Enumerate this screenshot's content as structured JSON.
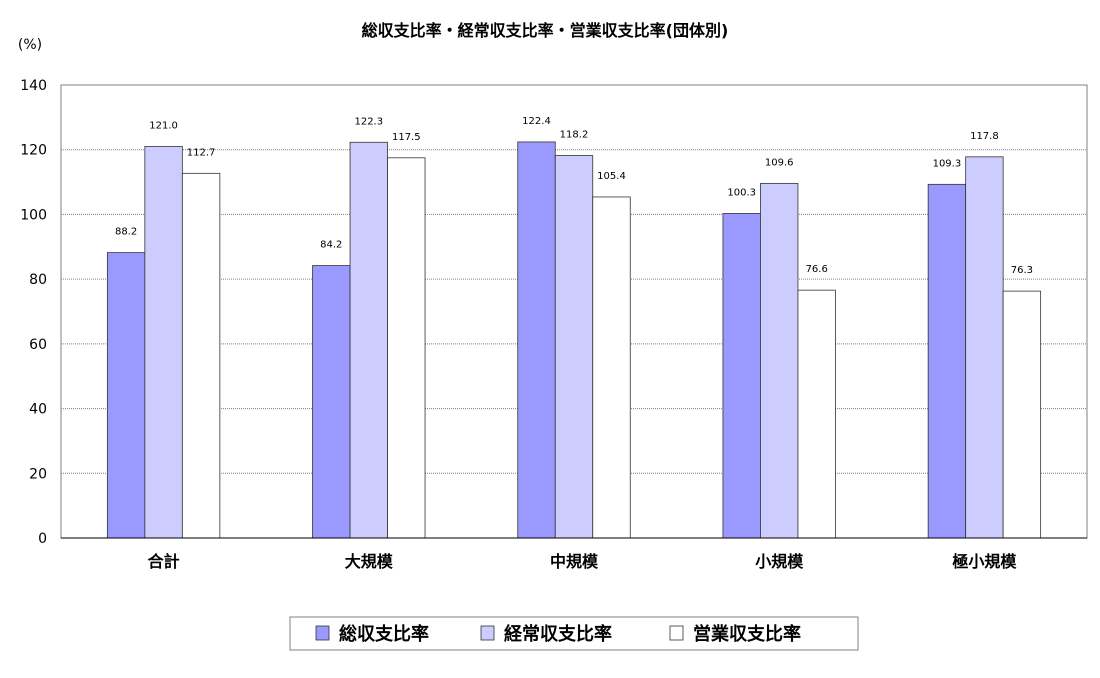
{
  "chart_data": {
    "type": "bar",
    "title": "総収支比率・経常収支比率・営業収支比率(団体別)",
    "unit_label": "(%)",
    "categories": [
      "合計",
      "大規模",
      "中規模",
      "小規模",
      "極小規模"
    ],
    "series": [
      {
        "name": "総収支比率",
        "values": [
          88.2,
          84.2,
          122.4,
          100.3,
          109.3
        ],
        "labels": [
          "88.2",
          "84.2",
          "122.4",
          "100.3",
          "109.3"
        ],
        "color": "#9999ff"
      },
      {
        "name": "経常収支比率",
        "values": [
          121.0,
          122.3,
          118.2,
          109.6,
          117.8
        ],
        "labels": [
          "121.0",
          "122.3",
          "118.2",
          "109.6",
          "117.8"
        ],
        "color": "#ccccff"
      },
      {
        "name": "営業収支比率",
        "values": [
          112.7,
          117.5,
          105.4,
          76.6,
          76.3
        ],
        "labels": [
          "112.7",
          "117.5",
          "105.4",
          "76.6",
          "76.3"
        ],
        "color": "#ffffff"
      }
    ],
    "y_ticks": [
      "0",
      "20",
      "40",
      "60",
      "80",
      "100",
      "120",
      "140"
    ],
    "ylim": [
      0,
      140
    ],
    "grid": true,
    "legend_position": "bottom"
  }
}
